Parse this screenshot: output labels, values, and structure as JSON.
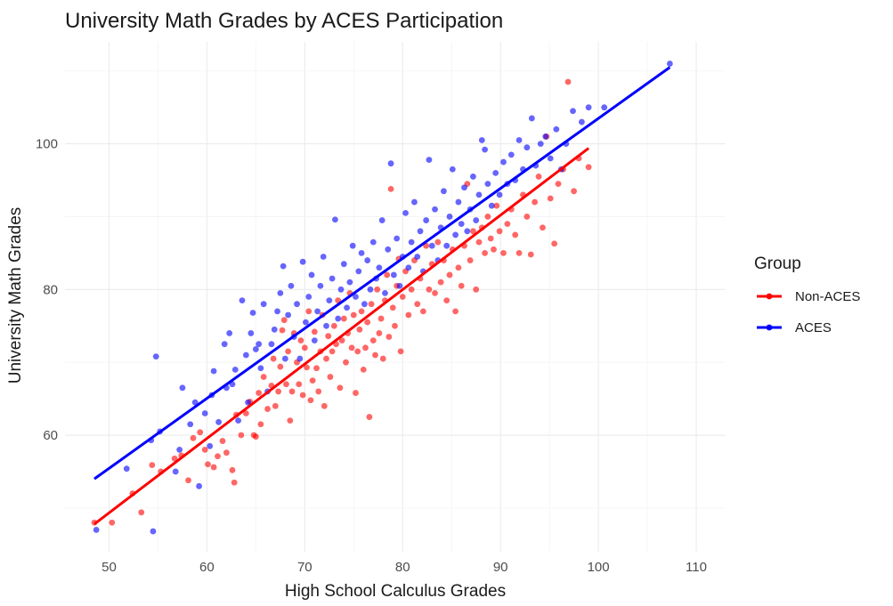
{
  "chart_data": {
    "type": "scatter",
    "title": "University Math Grades by ACES Participation",
    "xlabel": "High School Calculus Grades",
    "ylabel": "University Math Grades",
    "xlim": [
      45.5,
      113
    ],
    "ylim": [
      44,
      114
    ],
    "x_ticks": [
      50,
      60,
      70,
      80,
      90,
      100,
      110
    ],
    "y_ticks": [
      60,
      80,
      100
    ],
    "grid": true,
    "legend": {
      "title": "Group",
      "position": "right",
      "entries": [
        "Non-ACES",
        "ACES"
      ]
    },
    "series": [
      {
        "name": "Non-ACES",
        "color": "#ff0000",
        "fit_line": {
          "x": [
            48.5,
            99
          ],
          "y": [
            47.8,
            99.4
          ]
        },
        "points": [
          [
            48.5,
            48
          ],
          [
            50.3,
            48
          ],
          [
            53.3,
            49.4
          ],
          [
            52.4,
            52
          ],
          [
            54.4,
            55.9
          ],
          [
            55.3,
            55
          ],
          [
            56.7,
            56.8
          ],
          [
            57.4,
            57.2
          ],
          [
            58.1,
            53.8
          ],
          [
            58.6,
            59.6
          ],
          [
            59.3,
            60.4
          ],
          [
            59.8,
            58
          ],
          [
            60.1,
            56
          ],
          [
            60.7,
            55.6
          ],
          [
            61.1,
            57.1
          ],
          [
            61.6,
            59.2
          ],
          [
            62,
            57.6
          ],
          [
            62.6,
            55.2
          ],
          [
            62.8,
            53.5
          ],
          [
            63,
            62.8
          ],
          [
            63.5,
            60
          ],
          [
            64,
            63
          ],
          [
            64.4,
            64.6
          ],
          [
            64.8,
            60
          ],
          [
            65,
            59.8
          ],
          [
            65.3,
            65.8
          ],
          [
            65.5,
            61.5
          ],
          [
            65.8,
            68
          ],
          [
            66.2,
            63.6
          ],
          [
            66.6,
            66.8
          ],
          [
            66.8,
            70.5
          ],
          [
            67,
            64
          ],
          [
            67.3,
            66
          ],
          [
            67.5,
            69.4
          ],
          [
            67.7,
            74.4
          ],
          [
            67.9,
            75.8
          ],
          [
            68.1,
            67
          ],
          [
            68.3,
            71.5
          ],
          [
            68.5,
            62
          ],
          [
            68.7,
            66
          ],
          [
            68.9,
            74
          ],
          [
            69.2,
            70
          ],
          [
            69.4,
            67
          ],
          [
            69.6,
            73
          ],
          [
            69.8,
            65.5
          ],
          [
            70,
            72
          ],
          [
            70.2,
            69.3
          ],
          [
            70.4,
            77
          ],
          [
            70.6,
            64.8
          ],
          [
            70.8,
            67.5
          ],
          [
            71,
            74.2
          ],
          [
            71.2,
            69.2
          ],
          [
            71.4,
            66
          ],
          [
            71.6,
            71.5
          ],
          [
            71.8,
            76.5
          ],
          [
            72,
            64
          ],
          [
            72.2,
            70.5
          ],
          [
            72.4,
            73.6
          ],
          [
            72.6,
            68
          ],
          [
            72.8,
            71.5
          ],
          [
            73,
            75
          ],
          [
            73.2,
            72.5
          ],
          [
            73.4,
            78.5
          ],
          [
            73.6,
            66.5
          ],
          [
            73.8,
            73
          ],
          [
            74,
            76
          ],
          [
            74.2,
            70
          ],
          [
            74.4,
            74
          ],
          [
            74.6,
            79.5
          ],
          [
            74.8,
            72
          ],
          [
            75,
            76.5
          ],
          [
            75.2,
            65.8
          ],
          [
            75.4,
            71.5
          ],
          [
            75.6,
            74.5
          ],
          [
            75.8,
            77
          ],
          [
            76,
            69
          ],
          [
            76.2,
            72
          ],
          [
            76.4,
            75.5
          ],
          [
            76.6,
            62.5
          ],
          [
            76.8,
            78
          ],
          [
            77,
            73
          ],
          [
            77.2,
            71
          ],
          [
            77.4,
            80
          ],
          [
            77.6,
            74
          ],
          [
            77.8,
            76
          ],
          [
            78,
            70.5
          ],
          [
            78.2,
            78.5
          ],
          [
            78.4,
            82
          ],
          [
            78.6,
            73.5
          ],
          [
            78.8,
            93.8
          ],
          [
            79,
            77.5
          ],
          [
            79.2,
            75
          ],
          [
            79.4,
            80.5
          ],
          [
            79.6,
            84.2
          ],
          [
            79.8,
            71.5
          ],
          [
            80,
            79
          ],
          [
            80.3,
            82.5
          ],
          [
            80.6,
            76.5
          ],
          [
            80.9,
            80
          ],
          [
            81.2,
            84
          ],
          [
            81.5,
            78
          ],
          [
            81.8,
            81.5
          ],
          [
            82.1,
            77
          ],
          [
            82.4,
            86
          ],
          [
            82.7,
            80
          ],
          [
            83,
            83.5
          ],
          [
            83.3,
            79.5
          ],
          [
            83.6,
            86.5
          ],
          [
            83.9,
            81
          ],
          [
            84.2,
            84
          ],
          [
            84.5,
            78.5
          ],
          [
            84.8,
            82
          ],
          [
            85.1,
            85.5
          ],
          [
            85.4,
            77
          ],
          [
            85.7,
            83
          ],
          [
            86,
            80.5
          ],
          [
            86.3,
            86
          ],
          [
            86.6,
            94.5
          ],
          [
            86.9,
            84
          ],
          [
            87.2,
            88
          ],
          [
            87.5,
            80
          ],
          [
            87.8,
            86.5
          ],
          [
            88.1,
            88.5
          ],
          [
            88.4,
            85
          ],
          [
            88.7,
            90
          ],
          [
            89,
            87
          ],
          [
            89.3,
            85.5
          ],
          [
            89.6,
            91.5
          ],
          [
            89.9,
            88
          ],
          [
            90.3,
            85
          ],
          [
            90.7,
            89
          ],
          [
            91.1,
            91
          ],
          [
            91.5,
            87.5
          ],
          [
            91.9,
            85
          ],
          [
            92.3,
            93
          ],
          [
            92.7,
            90
          ],
          [
            93.1,
            84.8
          ],
          [
            93.5,
            92
          ],
          [
            93.9,
            95.5
          ],
          [
            94.3,
            88.5
          ],
          [
            94.7,
            101
          ],
          [
            95.1,
            92.5
          ],
          [
            95.5,
            86.3
          ],
          [
            95.9,
            94.5
          ],
          [
            96.4,
            96.5
          ],
          [
            96.9,
            108.5
          ],
          [
            97.5,
            93.5
          ],
          [
            98,
            98
          ],
          [
            99,
            96.8
          ]
        ]
      },
      {
        "name": "ACES",
        "color": "#0000ff",
        "fit_line": {
          "x": [
            48.5,
            107.3
          ],
          "y": [
            54,
            110.5
          ]
        },
        "points": [
          [
            48.7,
            47
          ],
          [
            51.8,
            55.4
          ],
          [
            54.3,
            59.3
          ],
          [
            54.5,
            46.8
          ],
          [
            54.8,
            70.8
          ],
          [
            55.2,
            60.5
          ],
          [
            56.8,
            55
          ],
          [
            57.2,
            58
          ],
          [
            57.5,
            66.5
          ],
          [
            58.3,
            61.5
          ],
          [
            58.8,
            64.5
          ],
          [
            59.2,
            53
          ],
          [
            59.8,
            63
          ],
          [
            60.3,
            58.5
          ],
          [
            60.5,
            65.5
          ],
          [
            60.7,
            68.8
          ],
          [
            61.2,
            61.8
          ],
          [
            61.8,
            72.5
          ],
          [
            62,
            66.5
          ],
          [
            62.3,
            74
          ],
          [
            62.6,
            67
          ],
          [
            62.9,
            69
          ],
          [
            63.2,
            62
          ],
          [
            63.6,
            78.5
          ],
          [
            64,
            71
          ],
          [
            64.2,
            64.5
          ],
          [
            64.5,
            74
          ],
          [
            64.7,
            76.8
          ],
          [
            65,
            71.8
          ],
          [
            65.3,
            72.5
          ],
          [
            65.5,
            69.2
          ],
          [
            65.8,
            78
          ],
          [
            66.2,
            66
          ],
          [
            66.6,
            72.5
          ],
          [
            66.9,
            74.5
          ],
          [
            67.2,
            77
          ],
          [
            67.5,
            79.5
          ],
          [
            67.8,
            83.2
          ],
          [
            68,
            70.5
          ],
          [
            68.3,
            76.5
          ],
          [
            68.6,
            80.5
          ],
          [
            68.9,
            73.5
          ],
          [
            69.2,
            78
          ],
          [
            69.5,
            70.5
          ],
          [
            69.8,
            83.8
          ],
          [
            70.1,
            75.5
          ],
          [
            70.4,
            79
          ],
          [
            70.7,
            82
          ],
          [
            71,
            73
          ],
          [
            71.3,
            77
          ],
          [
            71.6,
            80.5
          ],
          [
            71.9,
            84.5
          ],
          [
            72.2,
            75
          ],
          [
            72.5,
            78.5
          ],
          [
            72.8,
            81.5
          ],
          [
            73.1,
            89.6
          ],
          [
            73.4,
            76
          ],
          [
            73.7,
            80
          ],
          [
            74,
            83.5
          ],
          [
            74.3,
            77.5
          ],
          [
            74.6,
            81
          ],
          [
            74.9,
            86
          ],
          [
            75.2,
            79
          ],
          [
            75.5,
            82.5
          ],
          [
            75.8,
            85
          ],
          [
            76.1,
            78
          ],
          [
            76.4,
            84
          ],
          [
            76.7,
            80
          ],
          [
            77,
            86.5
          ],
          [
            77.3,
            81.5
          ],
          [
            77.6,
            83
          ],
          [
            77.9,
            89.5
          ],
          [
            78.2,
            79.5
          ],
          [
            78.5,
            85.5
          ],
          [
            78.8,
            97.3
          ],
          [
            79.1,
            82
          ],
          [
            79.4,
            87
          ],
          [
            79.7,
            80.5
          ],
          [
            80,
            84.5
          ],
          [
            80.3,
            90.5
          ],
          [
            80.6,
            83
          ],
          [
            80.9,
            86.5
          ],
          [
            81.2,
            92
          ],
          [
            81.5,
            84.5
          ],
          [
            81.8,
            88
          ],
          [
            82.1,
            82.5
          ],
          [
            82.4,
            89.5
          ],
          [
            82.7,
            97.8
          ],
          [
            83,
            86
          ],
          [
            83.3,
            91
          ],
          [
            83.6,
            84
          ],
          [
            83.9,
            88.5
          ],
          [
            84.2,
            93.5
          ],
          [
            84.5,
            86
          ],
          [
            84.8,
            90
          ],
          [
            85.1,
            96.5
          ],
          [
            85.4,
            87.5
          ],
          [
            85.7,
            92
          ],
          [
            86,
            89
          ],
          [
            86.3,
            94
          ],
          [
            86.6,
            88
          ],
          [
            86.9,
            91
          ],
          [
            87.2,
            95.5
          ],
          [
            87.5,
            89.5
          ],
          [
            87.8,
            93
          ],
          [
            88.1,
            100.5
          ],
          [
            88.4,
            99.2
          ],
          [
            88.7,
            94.5
          ],
          [
            89.1,
            91.5
          ],
          [
            89.5,
            96
          ],
          [
            89.9,
            93
          ],
          [
            90.3,
            97.5
          ],
          [
            90.7,
            94.5
          ],
          [
            91.1,
            98.5
          ],
          [
            91.5,
            95
          ],
          [
            91.9,
            100.5
          ],
          [
            92.3,
            96.5
          ],
          [
            92.7,
            99.5
          ],
          [
            93.2,
            103.5
          ],
          [
            93.6,
            97
          ],
          [
            94.1,
            100
          ],
          [
            94.6,
            101
          ],
          [
            95.1,
            98
          ],
          [
            95.7,
            102
          ],
          [
            96.2,
            96.5
          ],
          [
            96.7,
            100
          ],
          [
            97.4,
            104.5
          ],
          [
            98.3,
            103
          ],
          [
            99,
            105
          ],
          [
            100.6,
            105
          ],
          [
            107.3,
            111
          ]
        ]
      }
    ]
  }
}
